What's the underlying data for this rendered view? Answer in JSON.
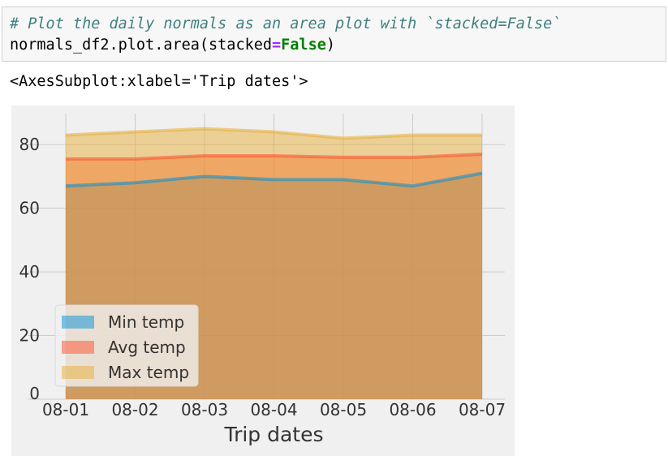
{
  "code": {
    "comment": "# Plot the daily normals as an area plot with `stacked=False`",
    "line2_a": "normals_df2.plot.area(stacked",
    "line2_op": "=",
    "line2_kw": "False",
    "line2_b": ")"
  },
  "output": {
    "text": "<AxesSubplot:xlabel='Trip dates'>"
  },
  "chart_data": {
    "type": "area",
    "stacked": false,
    "categories": [
      "08-01",
      "08-02",
      "08-03",
      "08-04",
      "08-05",
      "08-06",
      "08-07"
    ],
    "series": [
      {
        "name": "Min temp",
        "values": [
          67,
          68,
          70,
          69,
          69,
          67,
          71
        ],
        "color": "#008fd5"
      },
      {
        "name": "Avg temp",
        "values": [
          75.5,
          75.5,
          76.5,
          76.5,
          76,
          76,
          77
        ],
        "color": "#fc4f30"
      },
      {
        "name": "Max temp",
        "values": [
          83,
          84,
          85,
          84,
          82,
          83,
          83
        ],
        "color": "#e5ae38"
      }
    ],
    "xlabel": "Trip dates",
    "ylabel": "",
    "ylim": [
      0,
      90
    ],
    "yticks": [
      0,
      20,
      40,
      60,
      80
    ],
    "grid": true,
    "legend_position": "lower-left",
    "background": "#f0f0f0"
  }
}
